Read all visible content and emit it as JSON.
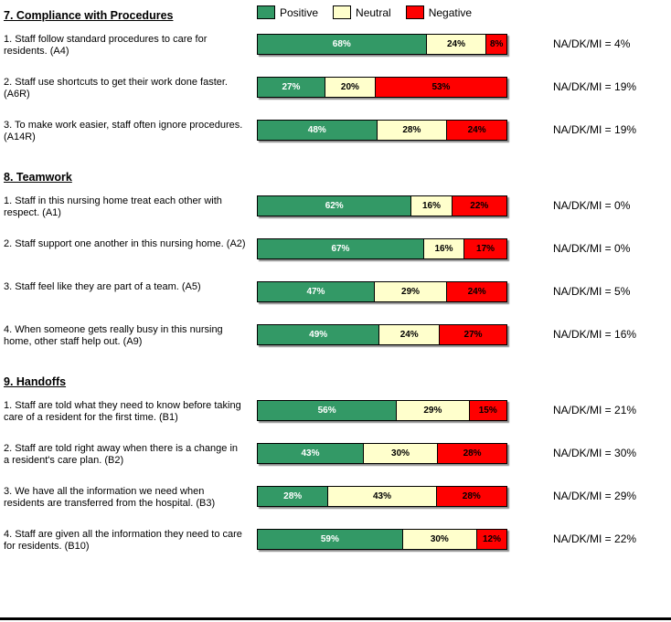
{
  "legend": [
    {
      "label": "Positive",
      "color": "#339966"
    },
    {
      "label": "Neutral",
      "color": "#FFFFCC"
    },
    {
      "label": "Negative",
      "color": "#FF0000"
    }
  ],
  "sections": [
    {
      "title": "7. Compliance with Procedures",
      "items": [
        {
          "question": "1.  Staff follow standard procedures to care for residents. (A4)",
          "values": [
            68,
            24,
            8
          ],
          "labels": [
            "68%",
            "24%",
            "8%"
          ],
          "na_label": "NA/DK/MI = 4%"
        },
        {
          "question": "2.  Staff use shortcuts to get their work done faster. (A6R)",
          "values": [
            27,
            20,
            53
          ],
          "labels": [
            "27%",
            "20%",
            "53%"
          ],
          "na_label": "NA/DK/MI = 19%"
        },
        {
          "question": "3. To make work easier, staff often ignore procedures. (A14R)",
          "values": [
            48,
            28,
            24
          ],
          "labels": [
            "48%",
            "28%",
            "24%"
          ],
          "na_label": "NA/DK/MI = 19%"
        }
      ]
    },
    {
      "title": "8. Teamwork",
      "items": [
        {
          "question": "1. Staff in this nursing home treat each other with respect.  (A1)",
          "values": [
            62,
            16,
            22
          ],
          "labels": [
            "62%",
            "16%",
            "22%"
          ],
          "na_label": "NA/DK/MI = 0%"
        },
        {
          "question": "2. Staff support one another in this nursing home.  (A2)",
          "values": [
            67,
            16,
            17
          ],
          "labels": [
            "67%",
            "16%",
            "17%"
          ],
          "na_label": "NA/DK/MI = 0%"
        },
        {
          "question": "3. Staff feel like they are part of a team. (A5)",
          "values": [
            47,
            29,
            24
          ],
          "labels": [
            "47%",
            "29%",
            "24%"
          ],
          "na_label": "NA/DK/MI = 5%"
        },
        {
          "question": "4. When someone gets really busy in this nursing home, other staff help out. (A9)",
          "values": [
            49,
            24,
            27
          ],
          "labels": [
            "49%",
            "24%",
            "27%"
          ],
          "na_label": "NA/DK/MI = 16%"
        }
      ]
    },
    {
      "title": "9. Handoffs",
      "items": [
        {
          "question": "1. Staff are told what they need to know before taking care of a resident for the first time. (B1)",
          "values": [
            56,
            29,
            15
          ],
          "labels": [
            "56%",
            "29%",
            "15%"
          ],
          "na_label": "NA/DK/MI = 21%"
        },
        {
          "question": "2. Staff are told right away when there is a change in a resident's care plan. (B2)",
          "values": [
            43,
            30,
            28
          ],
          "labels": [
            "43%",
            "30%",
            "28%"
          ],
          "na_label": "NA/DK/MI = 30%"
        },
        {
          "question": "3. We have all the information we need when residents are transferred from the hospital. (B3)",
          "values": [
            28,
            43,
            28
          ],
          "labels": [
            "28%",
            "43%",
            "28%"
          ],
          "na_label": "NA/DK/MI = 29%"
        },
        {
          "question": "4. Staff are given all the information they need to care for residents.  (B10)",
          "values": [
            59,
            30,
            12
          ],
          "labels": [
            "59%",
            "30%",
            "12%"
          ],
          "na_label": "NA/DK/MI = 22%"
        }
      ]
    }
  ],
  "chart_data": {
    "type": "bar",
    "orientation": "horizontal",
    "stacked": true,
    "title": "",
    "xlabel": "",
    "ylabel": "",
    "xlim": [
      0,
      100
    ],
    "grid": false,
    "legend_position": "top",
    "legend_entries": [
      "Positive",
      "Neutral",
      "Negative"
    ],
    "group_titles": [
      "7. Compliance with Procedures",
      "8. Teamwork",
      "9. Handoffs"
    ],
    "categories": [
      "1.  Staff follow standard procedures to care for residents. (A4)",
      "2.  Staff use shortcuts to get their work done faster. (A6R)",
      "3. To make work easier, staff often ignore procedures. (A14R)",
      "1. Staff in this nursing home treat each other with respect.  (A1)",
      "2. Staff support one another in this nursing home.  (A2)",
      "3. Staff feel like they are part of a team. (A5)",
      "4. When someone gets really busy in this nursing home, other staff help out. (A9)",
      "1. Staff are told what they need to know before taking care of a resident for the first time. (B1)",
      "2. Staff are told right away when there is a change in a resident's care plan. (B2)",
      "3. We have all the information we need when residents are transferred from the hospital. (B3)",
      "4. Staff are given all the information they need to care for residents.  (B10)"
    ],
    "series": [
      {
        "name": "Positive",
        "color": "#339966",
        "values": [
          68,
          27,
          48,
          62,
          67,
          47,
          49,
          56,
          43,
          28,
          59
        ]
      },
      {
        "name": "Neutral",
        "color": "#FFFFCC",
        "values": [
          24,
          20,
          28,
          16,
          16,
          29,
          24,
          29,
          30,
          43,
          30
        ]
      },
      {
        "name": "Negative",
        "color": "#FF0000",
        "values": [
          8,
          53,
          24,
          22,
          17,
          24,
          27,
          15,
          28,
          28,
          12
        ]
      }
    ],
    "na_dk_mi": [
      "4%",
      "19%",
      "19%",
      "0%",
      "0%",
      "5%",
      "16%",
      "21%",
      "30%",
      "29%",
      "22%"
    ]
  }
}
